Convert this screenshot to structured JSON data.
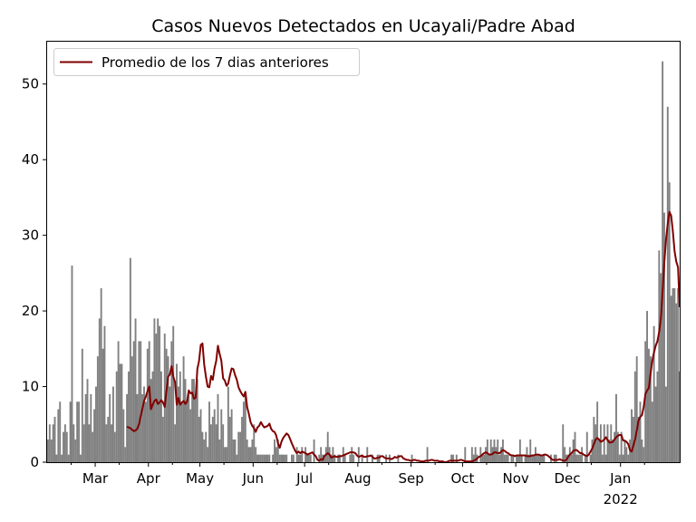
{
  "chart_data": {
    "type": "bar",
    "title": "Casos Nuevos Detectados en Ucayali/Padre Abad",
    "xlabel": "",
    "ylabel": "",
    "ylim": [
      0,
      55.6
    ],
    "yticks": [
      0,
      10,
      20,
      30,
      40,
      50
    ],
    "month_ticks": [
      "Mar",
      "Apr",
      "May",
      "Jun",
      "Jul",
      "Aug",
      "Sep",
      "Oct",
      "Nov",
      "Dec",
      "Jan"
    ],
    "year_label": "2022",
    "grid": false,
    "legend_position": "top-left",
    "bar_color": "#808080",
    "line_color": "#800000",
    "series": [
      {
        "type": "bar",
        "values": [
          3,
          5,
          3,
          5,
          6,
          1,
          7,
          8,
          1,
          4,
          5,
          4,
          1,
          8,
          26,
          5,
          3,
          8,
          8,
          1,
          15,
          5,
          9,
          11,
          5,
          9,
          4,
          7,
          10,
          14,
          19,
          23,
          15,
          18,
          5,
          6,
          9,
          5,
          10,
          4,
          12,
          16,
          13,
          13,
          7,
          2,
          9,
          12,
          27,
          14,
          16,
          19,
          9,
          16,
          16,
          9,
          10,
          8,
          15,
          16,
          11,
          12,
          19,
          17,
          19,
          18,
          12,
          6,
          17,
          15,
          14,
          10,
          16,
          18,
          5,
          13,
          10,
          12,
          8,
          14,
          11,
          8,
          9,
          7,
          11,
          11,
          9,
          11,
          6,
          7,
          4,
          3,
          4,
          2,
          8,
          5,
          6,
          7,
          5,
          9,
          3,
          7,
          5,
          2,
          2,
          10,
          6,
          7,
          3,
          3,
          1,
          4,
          4,
          6,
          8,
          9,
          3,
          2,
          2,
          3,
          5,
          2,
          1,
          1,
          1,
          1,
          1,
          1,
          1,
          1,
          0,
          1,
          3,
          2,
          3,
          1,
          1,
          1,
          1,
          1,
          0,
          0,
          1,
          1,
          0,
          2,
          1,
          1,
          2,
          0,
          2,
          1,
          1,
          1,
          0,
          3,
          0,
          0,
          1,
          2,
          1,
          1,
          2,
          4,
          2,
          1,
          2,
          1,
          0,
          1,
          1,
          0,
          2,
          1,
          0,
          0,
          1,
          2,
          1,
          0,
          0,
          2,
          0,
          1,
          0,
          0,
          2,
          0,
          0,
          1,
          0,
          0,
          1,
          1,
          0,
          0,
          0,
          1,
          0,
          1,
          0,
          0,
          0,
          0,
          1,
          0,
          0,
          0,
          0,
          0,
          0,
          0,
          1,
          0,
          0,
          0,
          0,
          0,
          0,
          0,
          0,
          2,
          0,
          0,
          0,
          0,
          0,
          0,
          0,
          0,
          0,
          0,
          0,
          0,
          0,
          1,
          1,
          0,
          1,
          0,
          0,
          0,
          0,
          2,
          0,
          0,
          0,
          2,
          1,
          2,
          1,
          0,
          2,
          1,
          1,
          2,
          3,
          1,
          3,
          2,
          3,
          2,
          3,
          1,
          2,
          3,
          1,
          1,
          1,
          0,
          1,
          1,
          0,
          1,
          1,
          3,
          1,
          0,
          1,
          2,
          1,
          3,
          1,
          1,
          2,
          1,
          1,
          1,
          1,
          1,
          0,
          0,
          0,
          1,
          0,
          1,
          1,
          0,
          0,
          0,
          5,
          2,
          1,
          1,
          2,
          1,
          3,
          4,
          1,
          1,
          1,
          2,
          0,
          1,
          4,
          0,
          1,
          3,
          6,
          5,
          8,
          3,
          5,
          1,
          5,
          1,
          5,
          3,
          5,
          3,
          4,
          9,
          4,
          1,
          4,
          1,
          3,
          2,
          1,
          3,
          7,
          6,
          12,
          14,
          6,
          8,
          3,
          2,
          16,
          20,
          15,
          14,
          8,
          18,
          10,
          12,
          28,
          25,
          53,
          33,
          10,
          47,
          37,
          22,
          23,
          23,
          21,
          23,
          12
        ]
      },
      {
        "type": "line",
        "name": "Promedio de los 7 dias anteriores",
        "values": [
          4.7,
          4.6,
          4.5,
          4.3,
          4.1,
          4.2,
          4.4,
          5.0,
          6.1,
          7.1,
          8.1,
          8.7,
          9.4,
          10.0,
          7.0,
          7.6,
          8.1,
          8.3,
          7.7,
          7.9,
          8.2,
          7.9,
          7.3,
          9.4,
          11.3,
          11.6,
          12.7,
          11.3,
          10.6,
          7.6,
          8.5,
          7.6,
          7.9,
          8.1,
          7.7,
          8.0,
          9.5,
          9.1,
          9.2,
          8.4,
          8.5,
          12.3,
          13.4,
          15.5,
          15.7,
          12.9,
          11.3,
          10.0,
          9.9,
          11.4,
          10.9,
          12.4,
          13.4,
          15.4,
          14.3,
          13.4,
          11.1,
          10.8,
          10.1,
          10.4,
          11.5,
          12.4,
          12.3,
          11.5,
          10.9,
          9.9,
          9.4,
          9.0,
          8.7,
          9.3,
          7.3,
          6.4,
          5.3,
          4.8,
          4.5,
          4.0,
          4.6,
          4.8,
          5.3,
          4.9,
          4.6,
          4.7,
          4.8,
          5.1,
          4.4,
          4.1,
          4.0,
          3.5,
          2.5,
          1.9,
          2.7,
          3.2,
          3.5,
          3.8,
          3.6,
          3.1,
          2.5,
          2.0,
          1.5,
          1.2,
          1.4,
          1.2,
          1.4,
          1.3,
          1.2,
          1.0,
          1.1,
          1.2,
          1.3,
          1.0,
          0.8,
          0.3,
          0.2,
          0.4,
          0.3,
          0.8,
          1.0,
          1.2,
          1.0,
          0.6,
          0.7,
          0.8,
          0.7,
          0.7,
          0.8,
          0.8,
          0.9,
          1.0,
          1.1,
          1.2,
          1.3,
          1.3,
          1.3,
          1.2,
          0.9,
          0.7,
          0.8,
          0.9,
          0.7,
          0.7,
          0.8,
          0.8,
          0.9,
          0.7,
          0.5,
          0.5,
          0.6,
          0.6,
          0.8,
          0.8,
          0.6,
          0.5,
          0.5,
          0.5,
          0.4,
          0.5,
          0.7,
          0.6,
          0.7,
          0.8,
          0.8,
          0.5,
          0.4,
          0.3,
          0.3,
          0.2,
          0.2,
          0.3,
          0.3,
          0.2,
          0.2,
          0.1,
          0.1,
          0.1,
          0.2,
          0.2,
          0.2,
          0.3,
          0.3,
          0.2,
          0.2,
          0.2,
          0.1,
          0.1,
          0.1,
          0.0,
          0.0,
          0.1,
          0.2,
          0.2,
          0.2,
          0.2,
          0.2,
          0.2,
          0.3,
          0.3,
          0.2,
          0.1,
          0.1,
          0.1,
          0.1,
          0.1,
          0.2,
          0.3,
          0.5,
          0.7,
          0.8,
          1.0,
          1.2,
          1.3,
          1.2,
          1.0,
          1.0,
          1.1,
          1.3,
          1.3,
          1.2,
          1.2,
          1.4,
          1.6,
          1.5,
          1.3,
          1.2,
          1.0,
          0.9,
          0.9,
          0.8,
          0.9,
          0.9,
          0.9,
          0.9,
          0.9,
          0.9,
          0.8,
          0.8,
          0.8,
          0.9,
          0.9,
          1.0,
          1.0,
          1.0,
          0.9,
          0.9,
          1.0,
          1.0,
          0.9,
          0.7,
          0.5,
          0.3,
          0.3,
          0.3,
          0.3,
          0.4,
          0.3,
          0.2,
          0.2,
          0.3,
          0.7,
          1.0,
          1.2,
          1.5,
          1.6,
          1.6,
          1.4,
          1.2,
          1.2,
          1.0,
          0.9,
          0.8,
          1.0,
          1.4,
          1.8,
          2.4,
          3.0,
          3.2,
          3.0,
          2.7,
          2.8,
          3.0,
          3.3,
          2.9,
          2.6,
          2.6,
          2.7,
          3.0,
          3.3,
          3.5,
          3.6,
          3.6,
          2.9,
          2.8,
          2.7,
          2.4,
          1.6,
          1.4,
          2.2,
          3.0,
          4.2,
          5.5,
          6.0,
          6.2,
          7.3,
          9.0,
          9.5,
          9.8,
          11.7,
          13.4,
          14.5,
          15.4,
          16.0,
          17.2,
          19.0,
          22.6,
          26.4,
          29.4,
          31.5,
          33.1,
          32.6,
          30.5,
          27.9,
          26.5,
          25.8,
          20.5
        ]
      }
    ]
  }
}
